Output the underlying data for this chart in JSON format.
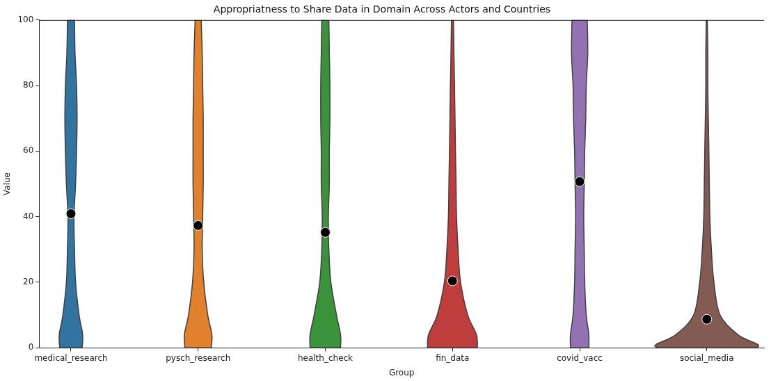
{
  "chart_data": {
    "type": "scatter",
    "title": "Appropriatness to Share Data in Domain Across Actors and Countries",
    "xlabel": "Group",
    "ylabel": "Value",
    "categories": [
      "medical_research",
      "pysch_research",
      "health_check",
      "fin_data",
      "covid_vacc",
      "social_media"
    ],
    "ylim": [
      0,
      100
    ],
    "yticks": [
      0,
      20,
      40,
      60,
      80,
      100
    ],
    "grid": false,
    "legend": false,
    "marker": "circle",
    "color": "#000000",
    "values": [
      40.9,
      37.3,
      35.2,
      20.4,
      50.7,
      8.7
    ]
  }
}
